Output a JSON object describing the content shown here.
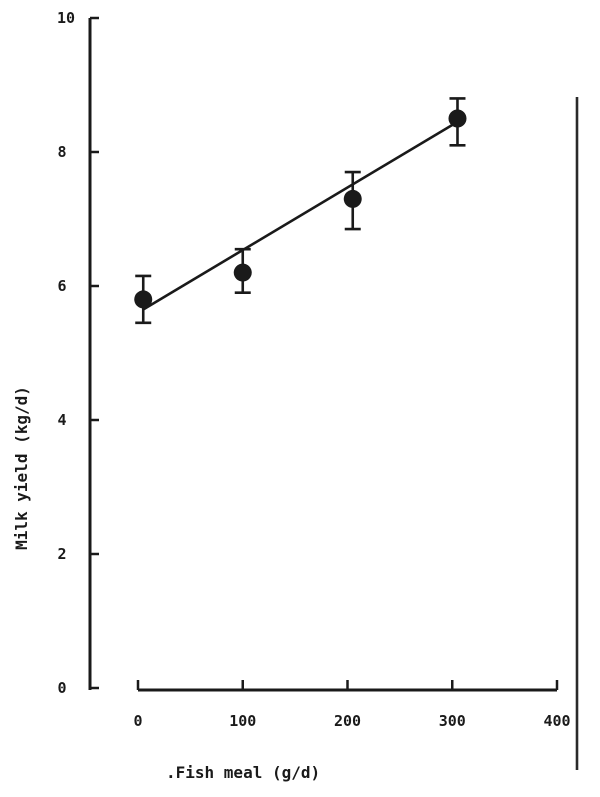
{
  "chart_data": {
    "type": "scatter",
    "title": "",
    "xlabel": ".Fish meal (g/d)",
    "ylabel": "Milk yield (kg/d)",
    "xlim": [
      0,
      400
    ],
    "ylim": [
      0,
      10
    ],
    "x_ticks": [
      0,
      100,
      200,
      300,
      400
    ],
    "y_ticks": [
      0,
      2,
      4,
      6,
      8,
      10
    ],
    "grid": false,
    "legend": "none",
    "series": [
      {
        "points": [
          {
            "x": 5,
            "y": 5.8,
            "err_low": 5.45,
            "err_high": 6.15
          },
          {
            "x": 100,
            "y": 6.2,
            "err_low": 5.9,
            "err_high": 6.55
          },
          {
            "x": 205,
            "y": 7.3,
            "err_low": 6.85,
            "err_high": 7.7
          },
          {
            "x": 305,
            "y": 8.5,
            "err_low": 8.1,
            "err_high": 8.8
          }
        ]
      }
    ],
    "fit_line": {
      "x": [
        5,
        305
      ],
      "y": [
        5.65,
        8.45
      ]
    },
    "colors": {
      "ink": "#1a1a1a"
    }
  }
}
